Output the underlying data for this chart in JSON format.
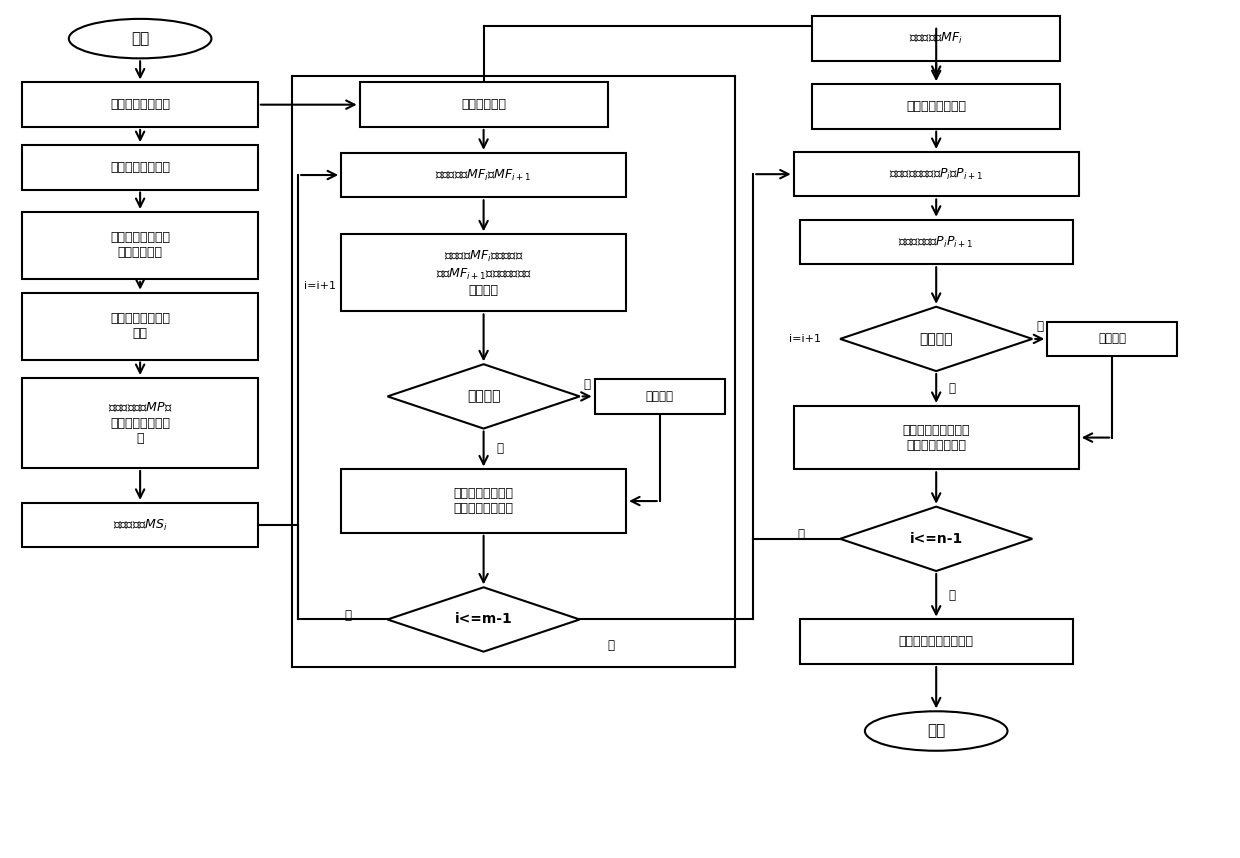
{
  "bg": "#ffffff",
  "lw": 1.5,
  "ec": "black",
  "fc": "white",
  "cols": {
    "A": 0.113,
    "B": 0.39,
    "C": 0.755
  },
  "rowsA": [
    0.955,
    0.878,
    0.805,
    0.714,
    0.62,
    0.507,
    0.388
  ],
  "rowsB": [
    0.878,
    0.796,
    0.682,
    0.538,
    0.416,
    0.278
  ],
  "rowsC": [
    0.955,
    0.876,
    0.797,
    0.718,
    0.605,
    0.49,
    0.372,
    0.252,
    0.148
  ],
  "textsA": [
    "开始",
    "读取零件工艺模型",
    "读取工艺凸台模型",
    "读取零件特征识别\n结果列表文件",
    "获取工艺凸台侧面\n列表",
    "确定检测工序$MP$并\n进行检测工步级规\n划",
    "取检测工步$MS_i$"
  ],
  "textsB": [
    "检测特征排序",
    "取检测特征$MF_i$和$MF_{i+1}$",
    "创建连接$MF_i$上终止检测\n点与$MF_{i+1}$上起始检测点的\n有向线段",
    "创建相交",
    "得到测头在该两个\n特征间的移动路径",
    "i<=m-1"
  ],
  "textsC": [
    "取检测特征$MF_i$",
    "特征内检测点排序",
    "取检测点的偏置点$P_i$和$P_{i+1}$",
    "创建有向线段$P_iP_{i+1}$",
    "创建相交",
    "得到测头在该两个检\n测点间的移动路径",
    "i<=n-1",
    "生成无干涉的检测路径",
    "结束"
  ],
  "ganjian_B": "干涉检查",
  "ganjian_C": "干涉检查",
  "label_shi": "是",
  "label_fou": "否",
  "label_loop_B": "i=i+1",
  "label_loop_C": "i=i+1"
}
